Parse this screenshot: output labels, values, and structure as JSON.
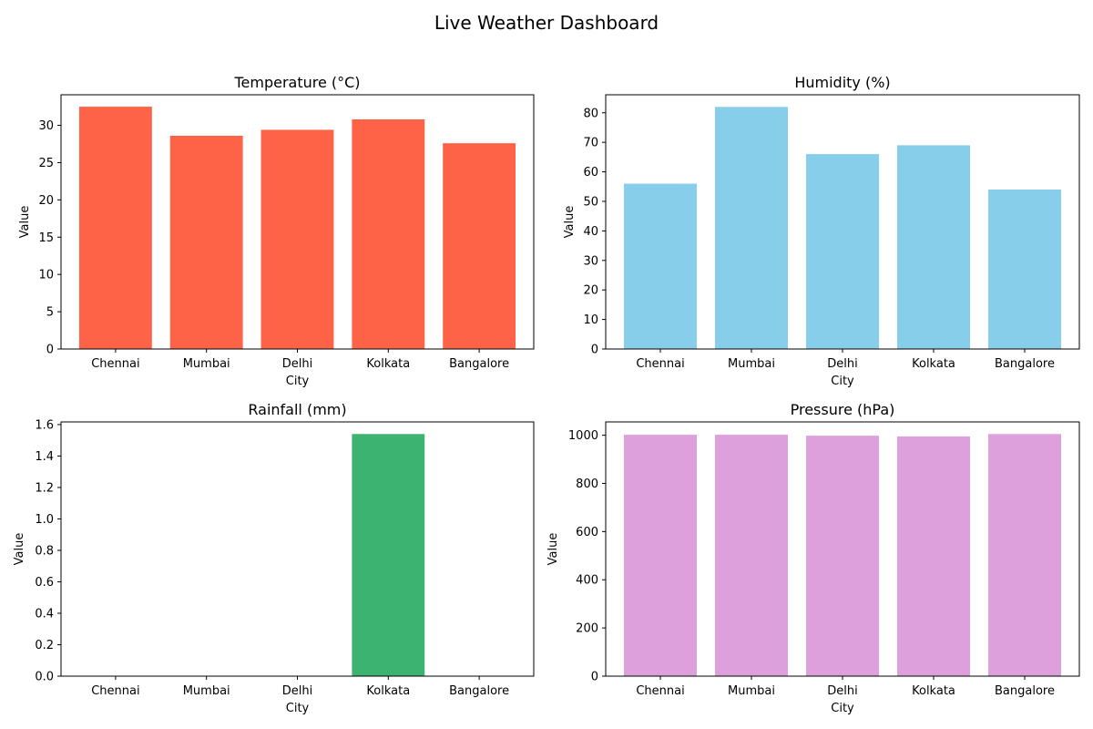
{
  "figure": {
    "title": "Live Weather Dashboard"
  },
  "chart_data": [
    {
      "type": "bar",
      "title": "Temperature (°C)",
      "xlabel": "City",
      "ylabel": "Value",
      "categories": [
        "Chennai",
        "Mumbai",
        "Delhi",
        "Kolkata",
        "Bangalore"
      ],
      "values": [
        32.5,
        28.6,
        29.4,
        30.8,
        27.6
      ],
      "ylim": [
        0,
        34.1
      ],
      "yticks": [
        0,
        5,
        10,
        15,
        20,
        25,
        30
      ],
      "ytick_decimals": 0,
      "color": "#ff6347",
      "grid": false
    },
    {
      "type": "bar",
      "title": "Humidity (%)",
      "xlabel": "City",
      "ylabel": "Value",
      "categories": [
        "Chennai",
        "Mumbai",
        "Delhi",
        "Kolkata",
        "Bangalore"
      ],
      "values": [
        56,
        82,
        66,
        69,
        54
      ],
      "ylim": [
        0,
        86.1
      ],
      "yticks": [
        0,
        10,
        20,
        30,
        40,
        50,
        60,
        70,
        80
      ],
      "ytick_decimals": 0,
      "color": "#87ceeb",
      "grid": false
    },
    {
      "type": "bar",
      "title": "Rainfall (mm)",
      "xlabel": "City",
      "ylabel": "Value",
      "categories": [
        "Chennai",
        "Mumbai",
        "Delhi",
        "Kolkata",
        "Bangalore"
      ],
      "values": [
        0,
        0,
        0,
        1.54,
        0
      ],
      "ylim": [
        0,
        1.617
      ],
      "yticks": [
        0.0,
        0.2,
        0.4,
        0.6,
        0.8,
        1.0,
        1.2,
        1.4,
        1.6
      ],
      "ytick_decimals": 1,
      "color": "#3cb371",
      "grid": false
    },
    {
      "type": "bar",
      "title": "Pressure (hPa)",
      "xlabel": "City",
      "ylabel": "Value",
      "categories": [
        "Chennai",
        "Mumbai",
        "Delhi",
        "Kolkata",
        "Bangalore"
      ],
      "values": [
        1002,
        1002,
        998,
        995,
        1005
      ],
      "ylim": [
        0,
        1055.25
      ],
      "yticks": [
        0,
        200,
        400,
        600,
        800,
        1000
      ],
      "ytick_decimals": 0,
      "color": "#dda0dd",
      "grid": false
    }
  ]
}
